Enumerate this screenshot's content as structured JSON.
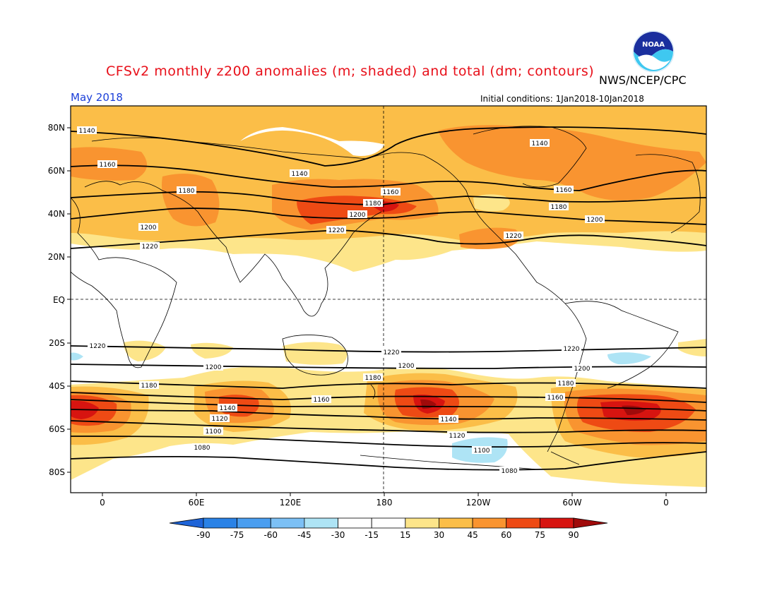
{
  "header": {
    "title": "CFSv2 monthly z200 anomalies (m; shaded) and total (dm; contours)",
    "agency": "NWS/NCEP/CPC",
    "valid_month": "May 2018",
    "initial_conditions": "Initial conditions: 1Jan2018-10Jan2018",
    "logo_text": "NOAA"
  },
  "map": {
    "lat_labels": [
      "80N",
      "60N",
      "40N",
      "20N",
      "EQ",
      "20S",
      "40S",
      "60S",
      "80S"
    ],
    "lon_labels": [
      "0",
      "60E",
      "120E",
      "180",
      "120W",
      "60W",
      "0"
    ],
    "contour_labels": [
      "1140",
      "1160",
      "1180",
      "1200",
      "1220",
      "1080",
      "1100",
      "1120"
    ]
  },
  "colorbar": {
    "ticks": [
      "-90",
      "-75",
      "-60",
      "-45",
      "-30",
      "-15",
      "15",
      "30",
      "45",
      "60",
      "75",
      "90"
    ],
    "colors": [
      "#1e64d8",
      "#2a82e6",
      "#4a9ef0",
      "#7cc0f5",
      "#aee4f5",
      "#ffffff",
      "#ffffff",
      "#fde58a",
      "#fbbe48",
      "#f99430",
      "#ee4a14",
      "#d71410",
      "#a00a0a"
    ]
  }
}
